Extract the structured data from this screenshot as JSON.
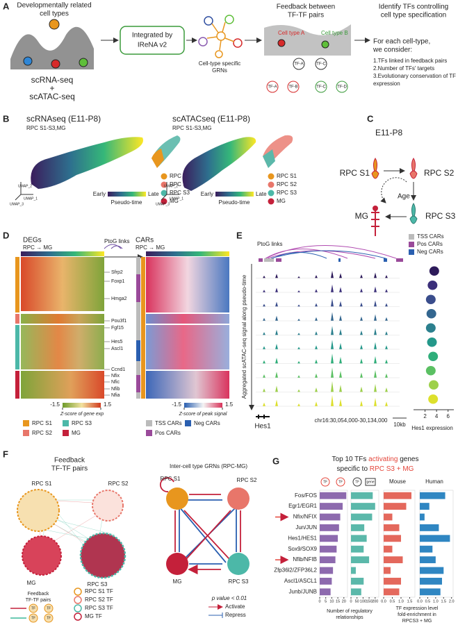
{
  "A": {
    "label": "A",
    "cells": [
      "Developmentally related",
      "cell types"
    ],
    "seq": [
      "scRNA-seq",
      "+",
      "scATAC-seq"
    ],
    "box": [
      "Integrated by",
      "IReNA v2"
    ],
    "grn": [
      "Cell-type specific",
      "GRNs"
    ],
    "feedback": [
      "Feedback between",
      "TF-TF pairs"
    ],
    "celltype_a": "Cell type A",
    "celltype_b": "Cell type B",
    "tfs": [
      "TF-A",
      "TF-C",
      "TF-A",
      "TF-B",
      "TF-C",
      "TF-D"
    ],
    "identify": [
      "Identify TFs controlling",
      "cell type specification"
    ],
    "consider": [
      "For each cell-type,",
      "we consider:"
    ],
    "list": [
      "1.TFs linked in feedback pairs",
      "2.Number of TFs' targets",
      "3.Evolutionary conservation of TF",
      "expression"
    ]
  },
  "B": {
    "label": "B",
    "rna_title": "scRNAseq (E11-P8)",
    "atac_title": "scATACseq (E11-P8)",
    "subtitle": "RPC S1-S3,MG",
    "legend": [
      "RPC S1",
      "RPC S2",
      "RPC S3",
      "MG"
    ],
    "early": "Early",
    "late": "Late",
    "pseudo": "Pseudo-time",
    "umap": [
      "UMAP_2",
      "UMAP_1",
      "UMAP_3"
    ]
  },
  "C": {
    "label": "C",
    "stage": "E11-P8",
    "s1": "RPC S1",
    "s2": "RPC S2",
    "s3": "RPC S3",
    "mg": "MG",
    "age": "Age"
  },
  "D": {
    "label": "D",
    "degs": "DEGs",
    "dir": "RPC → MG",
    "ptog": "PtoG links",
    "cars": "CARs",
    "dir2": "RPC → MG",
    "genes": [
      "Sfrp2",
      "Foxp1",
      "Hmga2",
      "Pou3f1",
      "Fgf15",
      "Hes5",
      "Ascl1",
      "Ccnd1",
      "Nfix",
      "Nfic",
      "Nfib",
      "Nfia"
    ],
    "scale_ticks": [
      -1.5,
      1.5
    ],
    "gene_scale": "Z-score of gene exp",
    "peak_scale": "Z-score of peak signal",
    "legend": [
      "RPC S1",
      "RPC S3",
      "RPC S2",
      "MG"
    ],
    "car_legend": [
      "TSS CARs",
      "Neg CARs",
      "Pos CARs"
    ]
  },
  "E": {
    "label": "E",
    "ptog": "PtoG links",
    "legend": [
      "TSS CARs",
      "Pos CARs",
      "Neg CARs"
    ],
    "ylabel": "Aggregated scATAC-seq signal along pseudo-time",
    "coords": "chr16:30,054,000-30,134,000",
    "scalebar": "10kb",
    "gene": "Hes1",
    "expr_label": "Hes1 expression",
    "expr_lim": [
      0,
      7
    ],
    "expr_ticks": [
      2,
      4,
      6
    ],
    "expr_medians": [
      3.6,
      3.3,
      3.0,
      3.1,
      3.0,
      3.2,
      3.4,
      3.0,
      3.5,
      3.4
    ]
  },
  "F": {
    "label": "F",
    "title": [
      "Feedback",
      "TF-TF pairs"
    ],
    "nodes": [
      "RPC S1",
      "RPC S2",
      "MG",
      "RPC S3"
    ],
    "legend_title": [
      "Feedback",
      "TF-TF pairs"
    ],
    "tf": "TF",
    "tf_legend": [
      "RPC S1 TF",
      "RPC S2 TF",
      "RPC S3 TF",
      "MG TF"
    ],
    "inter_title": "Inter-cell type GRNs (RPC-MG)",
    "inter_nodes": [
      "RPC S1",
      "RPC S2",
      "MG",
      "RPC S3"
    ],
    "pval": "p value < 0.01",
    "activate": "Activate",
    "repress": "Repress"
  },
  "G": {
    "label": "G",
    "title": [
      "Top 10 TFs ",
      "activating",
      " genes",
      "specific to ",
      "RPC S3 + MG"
    ],
    "icons": [
      "TF",
      "TF",
      "TF",
      "gene"
    ],
    "mouse": "Mouse",
    "human": "Human",
    "categories": [
      "Fos/FOS",
      "Egr1/EGR1",
      "Nfix/NFIX",
      "Jun/JUN",
      "Hes1/HES1",
      "Sox9/SOX9",
      "Nfib/NFIB",
      "Zfp36l2/ZFP36L2",
      "Ascl1/ASCL1",
      "Junb/JUNB"
    ],
    "series": [
      {
        "color": "#8d6aae",
        "values": [
          22,
          19,
          17,
          16,
          15,
          14,
          13,
          11,
          10,
          9
        ],
        "xlim": [
          0,
          23
        ],
        "xticks": [
          0,
          5,
          10,
          15,
          20
        ]
      },
      {
        "color": "#5bb8aa",
        "values": [
          180,
          200,
          175,
          110,
          130,
          105,
          150,
          40,
          105,
          85
        ],
        "xlim": [
          0,
          230
        ],
        "xticks": [
          0,
          50,
          100,
          150,
          200
        ]
      },
      {
        "color": "#e4685c",
        "values": [
          1.6,
          1.3,
          0.5,
          0.9,
          1.0,
          0.5,
          1.1,
          0.4,
          1.0,
          0.9
        ],
        "xlim": [
          0,
          1.8
        ],
        "xticks": [
          {
            "value": 0,
            "label": "0.0"
          },
          0.5,
          {
            "value": 1,
            "label": "1.0"
          },
          1.5
        ]
      },
      {
        "color": "#2f86c2",
        "values": [
          1.6,
          0.6,
          0.3,
          1.2,
          1.9,
          0.8,
          1.0,
          1.5,
          1.4,
          1.3
        ],
        "xlim": [
          0,
          2.1
        ],
        "xticks": [
          {
            "value": 0,
            "label": "0.0"
          },
          0.5,
          {
            "value": 1,
            "label": "1.0"
          },
          1.5,
          {
            "value": 2,
            "label": "2.0"
          }
        ]
      }
    ],
    "xlabel1": [
      "Number of regulatory",
      "relationships"
    ],
    "xlabel2": [
      "TF expression level",
      "fold-enrichment in",
      "RPCS3 + MG"
    ]
  }
}
